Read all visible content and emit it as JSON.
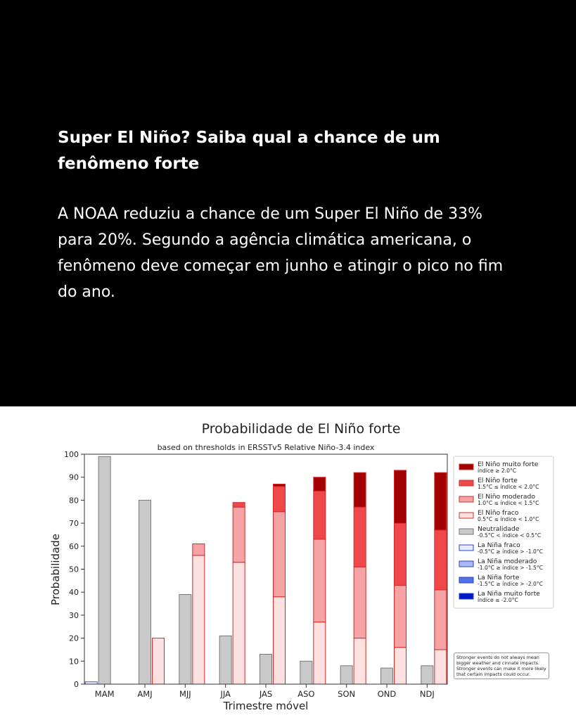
{
  "post": {
    "headline": "Super El Niño? Saiba qual a chance de um fenômeno forte",
    "body": "A NOAA reduziu a chance de um Super El Niño de 33% para 20%. Segundo a agência climática americana, o fenômeno deve começar em junho e atingir o pico no fim do ano."
  },
  "chart_data": {
    "type": "bar",
    "title": "Probabilidade de El Niño forte",
    "subtitle": "based on thresholds in ERSSTv5 Relative Niño-3.4 index",
    "xlabel": "Trimestre móvel",
    "ylabel": "Probabilidade",
    "ylim": [
      0,
      100
    ],
    "yticks": [
      0,
      10,
      20,
      30,
      40,
      50,
      60,
      70,
      80,
      90,
      100
    ],
    "grid": false,
    "legend_position": "right",
    "categories": [
      "MAM",
      "AMJ",
      "MJJ",
      "JJA",
      "JAS",
      "ASO",
      "SON",
      "OND",
      "NDJ"
    ],
    "series": [
      {
        "name": "El Niño muito forte",
        "range": "índice ≥ 2.0°C",
        "group": "elnino",
        "color": "#a30000",
        "values": [
          0,
          0,
          0,
          0,
          1,
          6,
          15,
          23,
          25
        ]
      },
      {
        "name": "El Niño forte",
        "range": "1.5°C ≤ índice < 2.0°C",
        "group": "elnino",
        "color": "#f0484a",
        "values": [
          0,
          0,
          0,
          2,
          11,
          21,
          26,
          27,
          26
        ]
      },
      {
        "name": "El Niño moderado",
        "range": "1.0°C ≤ índice < 1.5°C",
        "group": "elnino",
        "color": "#f7a3a5",
        "values": [
          0,
          0,
          5,
          24,
          37,
          36,
          31,
          27,
          26
        ]
      },
      {
        "name": "El Niño fraco",
        "range": "0.5°C ≤ índice < 1.0°C",
        "group": "elnino",
        "color": "#fde0e0",
        "values": [
          0,
          20,
          56,
          53,
          38,
          27,
          20,
          16,
          15
        ]
      },
      {
        "name": "Neutralidade",
        "range": "-0.5°C < índice < 0.5°C",
        "group": "neutral",
        "color": "#c9c9c9",
        "values": [
          99,
          80,
          39,
          21,
          13,
          10,
          8,
          7,
          8
        ]
      },
      {
        "name": "La Niña fraco",
        "range": "-0.5°C ≥ índice > -1.0°C",
        "group": "lanina",
        "color": "#e6ecfd",
        "values": [
          1,
          0,
          0,
          0,
          0,
          0,
          0,
          0,
          0
        ]
      },
      {
        "name": "La Niña moderado",
        "range": "-1.0°C ≥ índice > -1.5°C",
        "group": "lanina",
        "color": "#a9b8f3",
        "values": [
          0,
          0,
          0,
          0,
          0,
          0,
          0,
          0,
          0
        ]
      },
      {
        "name": "La Niña forte",
        "range": "-1.5°C ≥ índice > -2.0°C",
        "group": "lanina",
        "color": "#4f70e6",
        "values": [
          0,
          0,
          0,
          0,
          0,
          0,
          0,
          0,
          0
        ]
      },
      {
        "name": "La Niña muito forte",
        "range": "índice ≤ -2.0°C",
        "group": "lanina",
        "color": "#0019c8",
        "values": [
          0,
          0,
          0,
          0,
          0,
          0,
          0,
          0,
          0
        ]
      }
    ],
    "annotation": "Stronger events do not always mean bigger weather and cinnate impacts. Stronger events can make it more likely that certain impacts could occur."
  }
}
